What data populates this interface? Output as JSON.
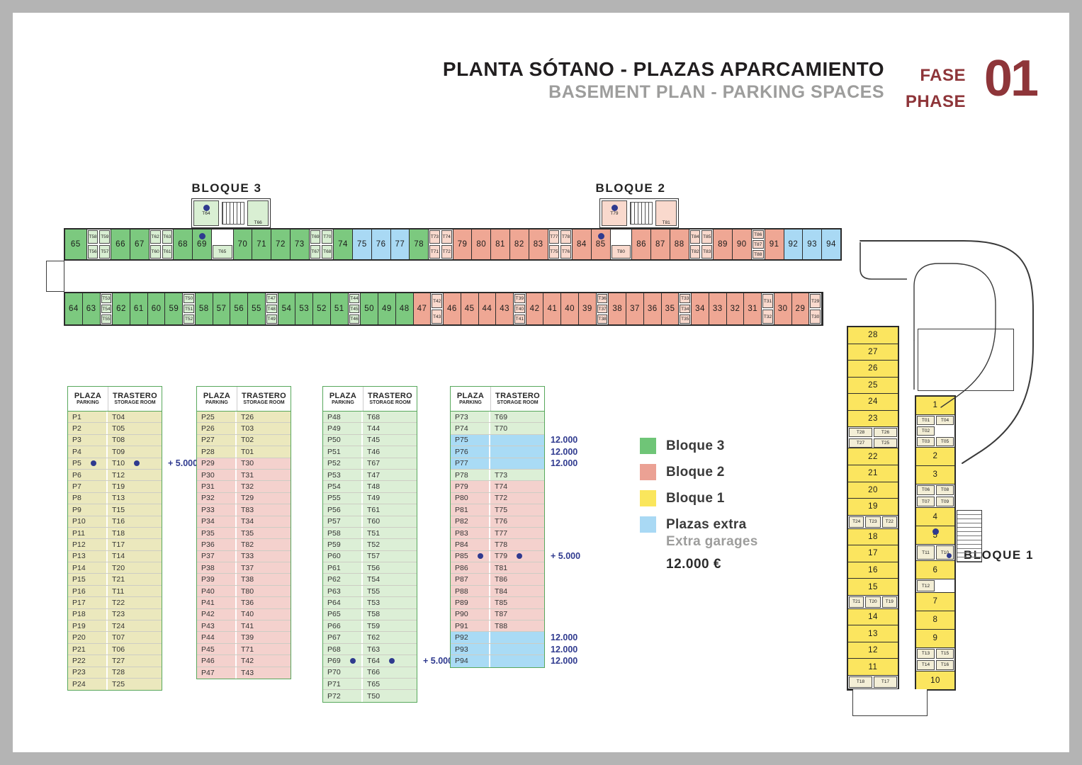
{
  "title": {
    "main": "PLANTA SÓTANO - PLAZAS APARCAMIENTO",
    "sub": "BASEMENT PLAN - PARKING SPACES",
    "fase": "FASE",
    "phase": "PHASE",
    "number": "01"
  },
  "colors": {
    "green": "#7cc97f",
    "green_pale": "#d9efd3",
    "rose": "#efa794",
    "rose_pale": "#f9d9cd",
    "yellow": "#fbe55f",
    "yellow_pale": "#f3eed6",
    "blue": "#a9d9f4",
    "navy": "#2f3a8f",
    "table_khaki": "#ebe8bd",
    "table_rose": "#f4d1cd",
    "table_green": "#dcefd6",
    "table_blue": "#a9dbf5",
    "table_border": "#58a85c",
    "maroon": "#8e3539",
    "gray_sub": "#9d9d9c"
  },
  "plan": {
    "bloque3_label": "BLOQUE 3",
    "bloque2_label": "BLOQUE 2",
    "bloque1_label": "BLOQUE 1",
    "stair3": {
      "cell": "T64*",
      "side": "T66"
    },
    "stair2": {
      "cell": "T79*",
      "side": "T81"
    },
    "top_row": [
      {
        "n": "65",
        "c": "g",
        "w": 1.15
      },
      {
        "cells": [
          [
            "T58",
            "T59"
          ],
          [
            "T56",
            "T57"
          ]
        ],
        "c": "g"
      },
      {
        "n": "66",
        "c": "g"
      },
      {
        "n": "67",
        "c": "g"
      },
      {
        "cells": [
          [
            "T62",
            "T63"
          ],
          [
            "T60",
            "T61"
          ]
        ],
        "c": "g"
      },
      {
        "n": "68",
        "c": "g"
      },
      {
        "n": "69",
        "c": "g",
        "dot": true
      },
      {
        "gap": "T65",
        "c": "g"
      },
      {
        "n": "70",
        "c": "g"
      },
      {
        "n": "71",
        "c": "g"
      },
      {
        "n": "72",
        "c": "g"
      },
      {
        "n": "73",
        "c": "g"
      },
      {
        "cells": [
          [
            "T69",
            "T70"
          ],
          [
            "T67",
            "T68"
          ]
        ],
        "c": "g"
      },
      {
        "n": "74",
        "c": "g"
      },
      {
        "n": "75",
        "c": "b"
      },
      {
        "n": "76",
        "c": "b"
      },
      {
        "n": "77",
        "c": "b"
      },
      {
        "n": "78",
        "c": "g"
      },
      {
        "cells": [
          [
            "T73",
            "T74"
          ],
          [
            "T71",
            "T72"
          ]
        ],
        "c": "r"
      },
      {
        "n": "79",
        "c": "r"
      },
      {
        "n": "80",
        "c": "r"
      },
      {
        "n": "81",
        "c": "r"
      },
      {
        "n": "82",
        "c": "r"
      },
      {
        "n": "83",
        "c": "r"
      },
      {
        "cells": [
          [
            "T77",
            "T78"
          ],
          [
            "T75",
            "T76"
          ]
        ],
        "c": "r"
      },
      {
        "n": "84",
        "c": "r"
      },
      {
        "n": "85",
        "c": "r",
        "dot": true
      },
      {
        "gap": "T80",
        "c": "r"
      },
      {
        "n": "86",
        "c": "r"
      },
      {
        "n": "87",
        "c": "r"
      },
      {
        "n": "88",
        "c": "r"
      },
      {
        "cells": [
          [
            "T84",
            "T85"
          ],
          [
            "T82",
            "T83"
          ]
        ],
        "c": "r"
      },
      {
        "n": "89",
        "c": "r"
      },
      {
        "n": "90",
        "c": "r"
      },
      {
        "cells": [
          [
            "T86"
          ],
          [
            "T87"
          ],
          [
            "T88"
          ]
        ],
        "c": "r",
        "w": 0.7
      },
      {
        "n": "91",
        "c": "r"
      },
      {
        "n": "92",
        "c": "b"
      },
      {
        "n": "93",
        "c": "b"
      },
      {
        "n": "94",
        "c": "b"
      }
    ],
    "bottom_row": [
      {
        "n": "64",
        "c": "g"
      },
      {
        "n": "63",
        "c": "g"
      },
      {
        "cells": [
          [
            "T53"
          ],
          [
            "T54"
          ],
          [
            "T55"
          ]
        ],
        "c": "g",
        "w": 0.7
      },
      {
        "n": "62",
        "c": "g"
      },
      {
        "n": "61",
        "c": "g"
      },
      {
        "n": "60",
        "c": "g"
      },
      {
        "n": "59",
        "c": "g"
      },
      {
        "cells": [
          [
            "T50"
          ],
          [
            "T51"
          ],
          [
            "T52"
          ]
        ],
        "c": "g",
        "w": 0.7
      },
      {
        "n": "58",
        "c": "g"
      },
      {
        "n": "57",
        "c": "g"
      },
      {
        "n": "56",
        "c": "g"
      },
      {
        "n": "55",
        "c": "g"
      },
      {
        "cells": [
          [
            "T47"
          ],
          [
            "T48"
          ],
          [
            "T49"
          ]
        ],
        "c": "g",
        "w": 0.7
      },
      {
        "n": "54",
        "c": "g"
      },
      {
        "n": "53",
        "c": "g"
      },
      {
        "n": "52",
        "c": "g"
      },
      {
        "n": "51",
        "c": "g"
      },
      {
        "cells": [
          [
            "T44"
          ],
          [
            "T45"
          ],
          [
            "T46"
          ]
        ],
        "c": "g",
        "w": 0.7
      },
      {
        "n": "50",
        "c": "g"
      },
      {
        "n": "49",
        "c": "g"
      },
      {
        "n": "48",
        "c": "g"
      },
      {
        "n": "47",
        "c": "r"
      },
      {
        "cells": [
          [
            "T42"
          ],
          [
            "T43"
          ]
        ],
        "c": "r",
        "w": 0.7
      },
      {
        "n": "46",
        "c": "r"
      },
      {
        "n": "45",
        "c": "r"
      },
      {
        "n": "44",
        "c": "r"
      },
      {
        "n": "43",
        "c": "r"
      },
      {
        "cells": [
          [
            "T39"
          ],
          [
            "T40"
          ],
          [
            "T41"
          ]
        ],
        "c": "r",
        "w": 0.7
      },
      {
        "n": "42",
        "c": "r"
      },
      {
        "n": "41",
        "c": "r"
      },
      {
        "n": "40",
        "c": "r"
      },
      {
        "n": "39",
        "c": "r"
      },
      {
        "cells": [
          [
            "T36"
          ],
          [
            "T37"
          ],
          [
            "T38"
          ]
        ],
        "c": "r",
        "w": 0.7
      },
      {
        "n": "38",
        "c": "r"
      },
      {
        "n": "37",
        "c": "r"
      },
      {
        "n": "36",
        "c": "r"
      },
      {
        "n": "35",
        "c": "r"
      },
      {
        "cells": [
          [
            "T33"
          ],
          [
            "T34"
          ],
          [
            "T35"
          ]
        ],
        "c": "r",
        "w": 0.7
      },
      {
        "n": "34",
        "c": "r"
      },
      {
        "n": "33",
        "c": "r"
      },
      {
        "n": "32",
        "c": "r"
      },
      {
        "n": "31",
        "c": "r"
      },
      {
        "cells": [
          [
            "T31"
          ],
          [
            "T32"
          ]
        ],
        "c": "r",
        "w": 0.7
      },
      {
        "n": "30",
        "c": "r"
      },
      {
        "n": "29",
        "c": "r"
      },
      {
        "cells": [
          [
            "T29"
          ],
          [
            "T30"
          ]
        ],
        "c": "r",
        "w": 0.7
      }
    ],
    "wing_left": [
      {
        "n": "28",
        "c": "y"
      },
      {
        "n": "27",
        "c": "y"
      },
      {
        "n": "26",
        "c": "y"
      },
      {
        "n": "25",
        "c": "y"
      },
      {
        "n": "24",
        "c": "y"
      },
      {
        "n": "23",
        "c": "y"
      },
      {
        "cells": [
          [
            "T28",
            "T26"
          ],
          [
            "T27",
            "T25"
          ]
        ],
        "c": "y",
        "w": 1.3
      },
      {
        "n": "22",
        "c": "y"
      },
      {
        "n": "21",
        "c": "y"
      },
      {
        "n": "20",
        "c": "y"
      },
      {
        "n": "19",
        "c": "y"
      },
      {
        "cells": [
          [
            "T24",
            "T23",
            "T22"
          ]
        ],
        "c": "y",
        "w": 0.8
      },
      {
        "n": "18",
        "c": "y"
      },
      {
        "n": "17",
        "c": "y"
      },
      {
        "n": "16",
        "c": "y"
      },
      {
        "n": "15",
        "c": "y"
      },
      {
        "cells": [
          [
            "T21",
            "T20",
            "T19"
          ]
        ],
        "c": "y",
        "w": 0.8
      },
      {
        "n": "14",
        "c": "y"
      },
      {
        "n": "13",
        "c": "y"
      },
      {
        "n": "12",
        "c": "y"
      },
      {
        "n": "11",
        "c": "y"
      },
      {
        "cells": [
          [
            "T18",
            "T17"
          ]
        ],
        "c": "y",
        "w": 0.8
      }
    ],
    "wing_right": [
      {
        "n": "1",
        "c": "y"
      },
      {
        "cells": [
          [
            "T01",
            "T04"
          ],
          [
            "T02",
            ""
          ],
          [
            "T03",
            "T05"
          ]
        ],
        "c": "y",
        "w": 1.8
      },
      {
        "n": "2",
        "c": "y"
      },
      {
        "n": "3",
        "c": "y"
      },
      {
        "cells": [
          [
            "T06",
            "T08"
          ],
          [
            "T07",
            "T09"
          ]
        ],
        "c": "y",
        "w": 1.3
      },
      {
        "n": "4",
        "c": "y"
      },
      {
        "n": "5",
        "c": "y",
        "dot": true
      },
      {
        "cells": [
          [
            "T11",
            "T10*"
          ]
        ],
        "c": "y",
        "w": 0.9
      },
      {
        "n": "6",
        "c": "y"
      },
      {
        "cells": [
          [
            "T12",
            ""
          ]
        ],
        "c": "y",
        "w": 0.7
      },
      {
        "n": "7",
        "c": "y"
      },
      {
        "n": "8",
        "c": "y"
      },
      {
        "n": "9",
        "c": "y"
      },
      {
        "cells": [
          [
            "T13",
            "T15"
          ],
          [
            "T14",
            "T16"
          ]
        ],
        "c": "y",
        "w": 1.3
      },
      {
        "n": "10",
        "c": "y"
      }
    ]
  },
  "table_header": {
    "col1": "PLAZA",
    "col1_sub": "PARKING",
    "col2": "TRASTERO",
    "col2_sub": "STORAGE ROOM"
  },
  "notes": {
    "plus": "+ 5.000",
    "extra": "12.000"
  },
  "tables": [
    [
      [
        "P1",
        "T04",
        "k"
      ],
      [
        "P2",
        "T05",
        "k"
      ],
      [
        "P3",
        "T08",
        "k"
      ],
      [
        "P4",
        "T09",
        "k"
      ],
      [
        "P5",
        "T10",
        "k",
        "hl"
      ],
      [
        "P6",
        "T12",
        "k"
      ],
      [
        "P7",
        "T19",
        "k"
      ],
      [
        "P8",
        "T13",
        "k"
      ],
      [
        "P9",
        "T15",
        "k"
      ],
      [
        "P10",
        "T16",
        "k"
      ],
      [
        "P11",
        "T18",
        "k"
      ],
      [
        "P12",
        "T17",
        "k"
      ],
      [
        "P13",
        "T14",
        "k"
      ],
      [
        "P14",
        "T20",
        "k"
      ],
      [
        "P15",
        "T21",
        "k"
      ],
      [
        "P16",
        "T11",
        "k"
      ],
      [
        "P17",
        "T22",
        "k"
      ],
      [
        "P18",
        "T23",
        "k"
      ],
      [
        "P19",
        "T24",
        "k"
      ],
      [
        "P20",
        "T07",
        "k"
      ],
      [
        "P21",
        "T06",
        "k"
      ],
      [
        "P22",
        "T27",
        "k"
      ],
      [
        "P23",
        "T28",
        "k"
      ],
      [
        "P24",
        "T25",
        "k"
      ]
    ],
    [
      [
        "P25",
        "T26",
        "k"
      ],
      [
        "P26",
        "T03",
        "k"
      ],
      [
        "P27",
        "T02",
        "k"
      ],
      [
        "P28",
        "T01",
        "k"
      ],
      [
        "P29",
        "T30",
        "r"
      ],
      [
        "P30",
        "T31",
        "r"
      ],
      [
        "P31",
        "T32",
        "r"
      ],
      [
        "P32",
        "T29",
        "r"
      ],
      [
        "P33",
        "T83",
        "r"
      ],
      [
        "P34",
        "T34",
        "r"
      ],
      [
        "P35",
        "T35",
        "r"
      ],
      [
        "P36",
        "T82",
        "r"
      ],
      [
        "P37",
        "T33",
        "r"
      ],
      [
        "P38",
        "T37",
        "r"
      ],
      [
        "P39",
        "T38",
        "r"
      ],
      [
        "P40",
        "T80",
        "r"
      ],
      [
        "P41",
        "T36",
        "r"
      ],
      [
        "P42",
        "T40",
        "r"
      ],
      [
        "P43",
        "T41",
        "r"
      ],
      [
        "P44",
        "T39",
        "r"
      ],
      [
        "P45",
        "T71",
        "r"
      ],
      [
        "P46",
        "T42",
        "r"
      ],
      [
        "P47",
        "T43",
        "r"
      ]
    ],
    [
      [
        "P48",
        "T68",
        "g"
      ],
      [
        "P49",
        "T44",
        "g"
      ],
      [
        "P50",
        "T45",
        "g"
      ],
      [
        "P51",
        "T46",
        "g"
      ],
      [
        "P52",
        "T67",
        "g"
      ],
      [
        "P53",
        "T47",
        "g"
      ],
      [
        "P54",
        "T48",
        "g"
      ],
      [
        "P55",
        "T49",
        "g"
      ],
      [
        "P56",
        "T61",
        "g"
      ],
      [
        "P57",
        "T60",
        "g"
      ],
      [
        "P58",
        "T51",
        "g"
      ],
      [
        "P59",
        "T52",
        "g"
      ],
      [
        "P60",
        "T57",
        "g"
      ],
      [
        "P61",
        "T56",
        "g"
      ],
      [
        "P62",
        "T54",
        "g"
      ],
      [
        "P63",
        "T55",
        "g"
      ],
      [
        "P64",
        "T53",
        "g"
      ],
      [
        "P65",
        "T58",
        "g"
      ],
      [
        "P66",
        "T59",
        "g"
      ],
      [
        "P67",
        "T62",
        "g"
      ],
      [
        "P68",
        "T63",
        "g"
      ],
      [
        "P69",
        "T64",
        "g",
        "hl"
      ],
      [
        "P70",
        "T66",
        "g"
      ],
      [
        "P71",
        "T65",
        "g"
      ],
      [
        "P72",
        "T50",
        "g"
      ]
    ],
    [
      [
        "P73",
        "T69",
        "g"
      ],
      [
        "P74",
        "T70",
        "g"
      ],
      [
        "P75",
        "",
        "b",
        "12"
      ],
      [
        "P76",
        "",
        "b",
        "12"
      ],
      [
        "P77",
        "",
        "b",
        "12"
      ],
      [
        "P78",
        "T73",
        "g"
      ],
      [
        "P79",
        "T74",
        "r"
      ],
      [
        "P80",
        "T72",
        "r"
      ],
      [
        "P81",
        "T75",
        "r"
      ],
      [
        "P82",
        "T76",
        "r"
      ],
      [
        "P83",
        "T77",
        "r"
      ],
      [
        "P84",
        "T78",
        "r"
      ],
      [
        "P85",
        "T79",
        "r",
        "hl"
      ],
      [
        "P86",
        "T81",
        "r"
      ],
      [
        "P87",
        "T86",
        "r"
      ],
      [
        "P88",
        "T84",
        "r"
      ],
      [
        "P89",
        "T85",
        "r"
      ],
      [
        "P90",
        "T87",
        "r"
      ],
      [
        "P91",
        "T88",
        "r"
      ],
      [
        "P92",
        "",
        "b",
        "12"
      ],
      [
        "P93",
        "",
        "b",
        "12"
      ],
      [
        "P94",
        "",
        "b",
        "12"
      ]
    ]
  ],
  "legend": {
    "items": [
      {
        "label": "Bloque 3",
        "color": "#6fc577"
      },
      {
        "label": "Bloque 2",
        "color": "#eba194"
      },
      {
        "label": "Bloque 1",
        "color": "#fae65c"
      },
      {
        "label": "Plazas extra",
        "color": "#a9d9f4",
        "sublabel": "Extra garages",
        "price": "12.000 €"
      }
    ]
  }
}
